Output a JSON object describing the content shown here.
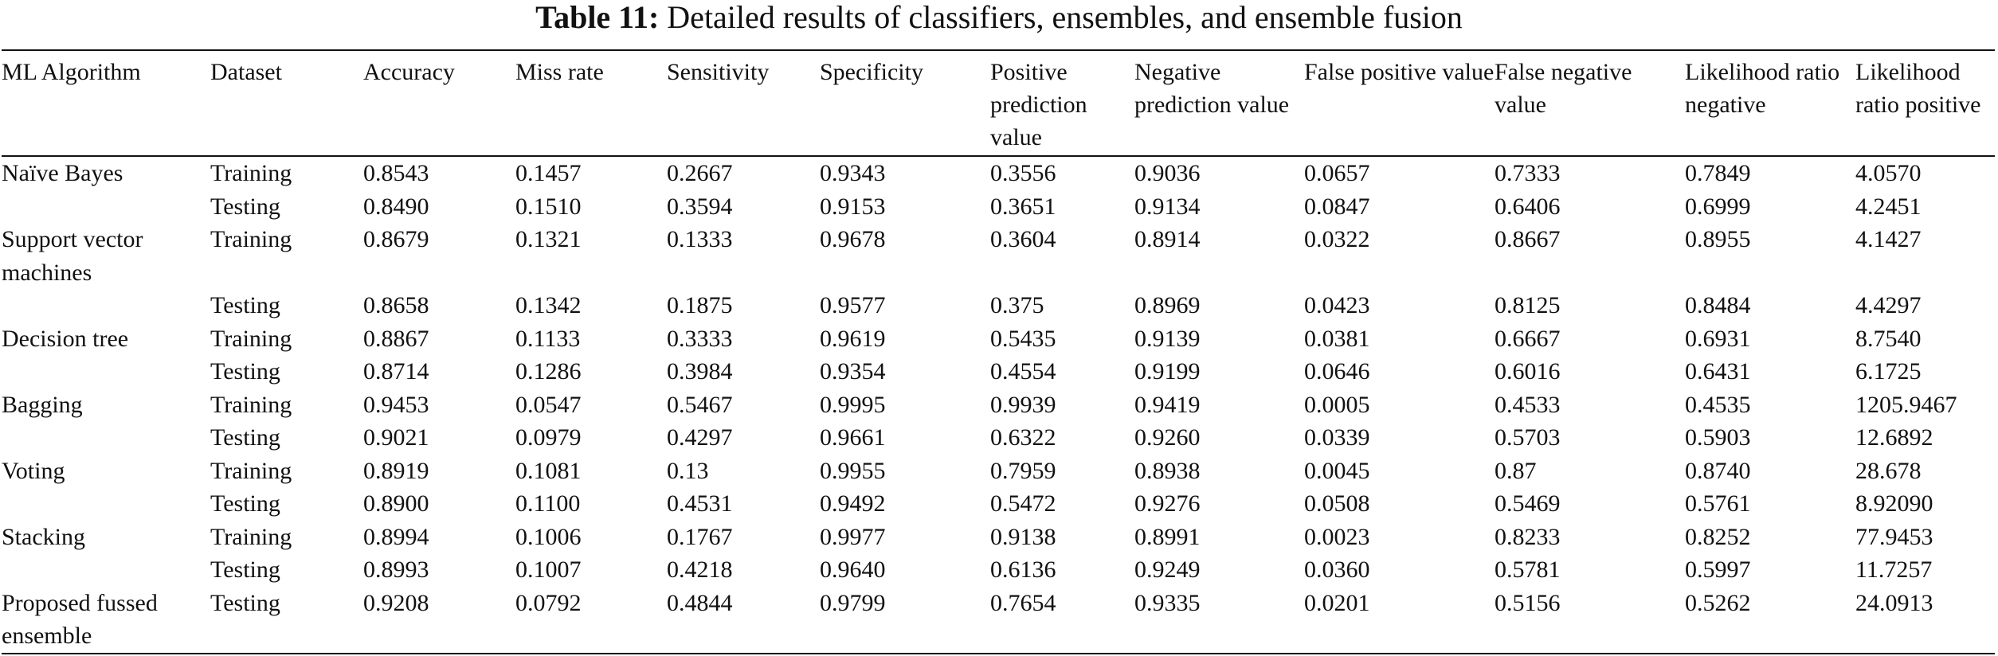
{
  "caption": {
    "label": "Table 11:",
    "text": "Detailed results of classifiers, ensembles, and ensemble fusion"
  },
  "columns": [
    "ML Algorithm",
    "Dataset",
    "Accuracy",
    "Miss rate",
    "Sensitivity",
    "Specificity",
    "Positive prediction value",
    "Negative prediction value",
    "False positive value",
    "False negative value",
    "Likelihood ratio negative",
    "Likelihood ratio positive"
  ],
  "rows": [
    {
      "algorithm": "Naïve Bayes",
      "dataset": "Training",
      "accuracy": "0.8543",
      "miss_rate": "0.1457",
      "sensitivity": "0.2667",
      "specificity": "0.9343",
      "ppv": "0.3556",
      "npv": "0.9036",
      "fpv": "0.0657",
      "fnv": "0.7333",
      "lr_neg": "0.7849",
      "lr_pos": "4.0570"
    },
    {
      "algorithm": "",
      "dataset": "Testing",
      "accuracy": "0.8490",
      "miss_rate": "0.1510",
      "sensitivity": "0.3594",
      "specificity": "0.9153",
      "ppv": "0.3651",
      "npv": "0.9134",
      "fpv": "0.0847",
      "fnv": "0.6406",
      "lr_neg": "0.6999",
      "lr_pos": "4.2451"
    },
    {
      "algorithm": "Support vector machines",
      "dataset": "Training",
      "accuracy": "0.8679",
      "miss_rate": "0.1321",
      "sensitivity": "0.1333",
      "specificity": "0.9678",
      "ppv": "0.3604",
      "npv": "0.8914",
      "fpv": "0.0322",
      "fnv": "0.8667",
      "lr_neg": "0.8955",
      "lr_pos": "4.1427"
    },
    {
      "algorithm": "",
      "dataset": "Testing",
      "accuracy": "0.8658",
      "miss_rate": "0.1342",
      "sensitivity": "0.1875",
      "specificity": "0.9577",
      "ppv": "0.375",
      "npv": "0.8969",
      "fpv": "0.0423",
      "fnv": "0.8125",
      "lr_neg": "0.8484",
      "lr_pos": "4.4297"
    },
    {
      "algorithm": "Decision tree",
      "dataset": "Training",
      "accuracy": "0.8867",
      "miss_rate": "0.1133",
      "sensitivity": "0.3333",
      "specificity": "0.9619",
      "ppv": "0.5435",
      "npv": "0.9139",
      "fpv": "0.0381",
      "fnv": "0.6667",
      "lr_neg": "0.6931",
      "lr_pos": "8.7540"
    },
    {
      "algorithm": "",
      "dataset": "Testing",
      "accuracy": "0.8714",
      "miss_rate": "0.1286",
      "sensitivity": "0.3984",
      "specificity": "0.9354",
      "ppv": "0.4554",
      "npv": "0.9199",
      "fpv": "0.0646",
      "fnv": "0.6016",
      "lr_neg": "0.6431",
      "lr_pos": "6.1725"
    },
    {
      "algorithm": "Bagging",
      "dataset": "Training",
      "accuracy": "0.9453",
      "miss_rate": "0.0547",
      "sensitivity": "0.5467",
      "specificity": "0.9995",
      "ppv": "0.9939",
      "npv": "0.9419",
      "fpv": "0.0005",
      "fnv": "0.4533",
      "lr_neg": "0.4535",
      "lr_pos": "1205.9467"
    },
    {
      "algorithm": "",
      "dataset": "Testing",
      "accuracy": "0.9021",
      "miss_rate": "0.0979",
      "sensitivity": "0.4297",
      "specificity": "0.9661",
      "ppv": "0.6322",
      "npv": "0.9260",
      "fpv": "0.0339",
      "fnv": "0.5703",
      "lr_neg": "0.5903",
      "lr_pos": "12.6892"
    },
    {
      "algorithm": "Voting",
      "dataset": "Training",
      "accuracy": "0.8919",
      "miss_rate": "0.1081",
      "sensitivity": "0.13",
      "specificity": "0.9955",
      "ppv": "0.7959",
      "npv": "0.8938",
      "fpv": "0.0045",
      "fnv": "0.87",
      "lr_neg": "0.8740",
      "lr_pos": "28.678"
    },
    {
      "algorithm": "",
      "dataset": "Testing",
      "accuracy": "0.8900",
      "miss_rate": "0.1100",
      "sensitivity": "0.4531",
      "specificity": "0.9492",
      "ppv": "0.5472",
      "npv": "0.9276",
      "fpv": "0.0508",
      "fnv": "0.5469",
      "lr_neg": "0.5761",
      "lr_pos": "8.92090"
    },
    {
      "algorithm": "Stacking",
      "dataset": "Training",
      "accuracy": "0.8994",
      "miss_rate": "0.1006",
      "sensitivity": "0.1767",
      "specificity": "0.9977",
      "ppv": "0.9138",
      "npv": "0.8991",
      "fpv": "0.0023",
      "fnv": "0.8233",
      "lr_neg": "0.8252",
      "lr_pos": "77.9453"
    },
    {
      "algorithm": "",
      "dataset": "Testing",
      "accuracy": "0.8993",
      "miss_rate": "0.1007",
      "sensitivity": "0.4218",
      "specificity": "0.9640",
      "ppv": "0.6136",
      "npv": "0.9249",
      "fpv": "0.0360",
      "fnv": "0.5781",
      "lr_neg": "0.5997",
      "lr_pos": "11.7257"
    },
    {
      "algorithm": "Proposed fussed ensemble",
      "dataset": "Testing",
      "accuracy": "0.9208",
      "miss_rate": "0.0792",
      "sensitivity": "0.4844",
      "specificity": "0.9799",
      "ppv": "0.7654",
      "npv": "0.9335",
      "fpv": "0.0201",
      "fnv": "0.5156",
      "lr_neg": "0.5262",
      "lr_pos": "24.0913"
    }
  ]
}
